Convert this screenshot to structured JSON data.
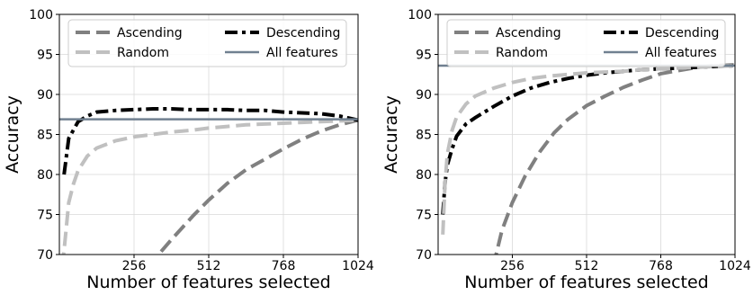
{
  "chart_data": [
    {
      "type": "line",
      "title": "",
      "xlabel": "Number of features selected",
      "ylabel": "Accuracy",
      "xlim": [
        0,
        1024
      ],
      "ylim": [
        70,
        100
      ],
      "xticks": [
        256,
        512,
        768,
        1024
      ],
      "yticks": [
        70,
        75,
        80,
        85,
        90,
        95,
        100
      ],
      "grid": true,
      "legend_position": "top",
      "series": [
        {
          "name": "Ascending",
          "style": "dashed",
          "color": "#808080",
          "x": [
            300,
            340,
            380,
            420,
            460,
            512,
            576,
            640,
            704,
            768,
            832,
            896,
            960,
            1024
          ],
          "y": [
            68.5,
            70.0,
            71.7,
            73.3,
            74.9,
            76.8,
            78.9,
            80.6,
            81.9,
            83.2,
            84.4,
            85.4,
            86.2,
            86.8
          ]
        },
        {
          "name": "Descending",
          "style": "dashdot",
          "color": "#000000",
          "x": [
            16,
            32,
            64,
            96,
            128,
            192,
            256,
            320,
            384,
            448,
            512,
            576,
            640,
            704,
            768,
            832,
            896,
            960,
            1024
          ],
          "y": [
            80.0,
            84.5,
            86.6,
            87.3,
            87.8,
            88.0,
            88.1,
            88.2,
            88.2,
            88.1,
            88.1,
            88.1,
            88.0,
            88.0,
            87.8,
            87.7,
            87.6,
            87.3,
            86.8
          ]
        },
        {
          "name": "Random",
          "style": "dashed",
          "color": "#c0c0c0",
          "x": [
            8,
            16,
            32,
            48,
            64,
            96,
            128,
            192,
            256,
            320,
            384,
            448,
            512,
            576,
            640,
            704,
            768,
            832,
            896,
            960,
            1024
          ],
          "y": [
            68.5,
            70.5,
            76.5,
            78.8,
            80.5,
            82.3,
            83.3,
            84.2,
            84.7,
            85.0,
            85.3,
            85.5,
            85.8,
            86.0,
            86.2,
            86.3,
            86.4,
            86.5,
            86.6,
            86.7,
            86.8
          ]
        },
        {
          "name": "All features",
          "style": "solid",
          "color": "#708090",
          "x": [
            0,
            1024
          ],
          "y": [
            86.9,
            86.9
          ]
        }
      ]
    },
    {
      "type": "line",
      "title": "",
      "xlabel": "Number of features selected",
      "ylabel": "Accuracy",
      "xlim": [
        0,
        1024
      ],
      "ylim": [
        70,
        100
      ],
      "xticks": [
        256,
        512,
        768,
        1024
      ],
      "yticks": [
        70,
        75,
        80,
        85,
        90,
        95,
        100
      ],
      "grid": true,
      "legend_position": "top",
      "series": [
        {
          "name": "Ascending",
          "style": "dashed",
          "color": "#808080",
          "x": [
            190,
            220,
            256,
            300,
            350,
            400,
            448,
            512,
            576,
            640,
            704,
            768,
            832,
            896,
            960,
            1024
          ],
          "y": [
            68.5,
            73.0,
            76.5,
            79.8,
            82.8,
            85.2,
            86.9,
            88.6,
            89.8,
            90.9,
            91.8,
            92.6,
            93.0,
            93.4,
            93.6,
            93.7
          ]
        },
        {
          "name": "Descending",
          "style": "dashdot",
          "color": "#000000",
          "x": [
            16,
            24,
            32,
            48,
            64,
            96,
            128,
            192,
            256,
            320,
            384,
            448,
            512,
            576,
            640,
            704,
            768,
            832,
            896,
            960,
            1024
          ],
          "y": [
            75.0,
            79.0,
            81.2,
            83.2,
            84.8,
            86.3,
            87.1,
            88.5,
            89.8,
            90.8,
            91.5,
            92.0,
            92.4,
            92.7,
            92.9,
            93.1,
            93.2,
            93.3,
            93.4,
            93.5,
            93.6
          ]
        },
        {
          "name": "Random",
          "style": "dashed",
          "color": "#c0c0c0",
          "x": [
            16,
            24,
            32,
            48,
            64,
            96,
            128,
            192,
            256,
            320,
            384,
            448,
            512,
            576,
            640,
            704,
            768,
            832,
            896,
            960,
            1024
          ],
          "y": [
            72.5,
            79.0,
            82.6,
            85.5,
            87.2,
            88.8,
            89.8,
            90.8,
            91.5,
            92.0,
            92.3,
            92.5,
            92.7,
            92.8,
            92.9,
            93.1,
            93.2,
            93.3,
            93.4,
            93.5,
            93.6
          ]
        },
        {
          "name": "All features",
          "style": "solid",
          "color": "#708090",
          "x": [
            0,
            1024
          ],
          "y": [
            93.6,
            93.6
          ]
        }
      ]
    }
  ]
}
